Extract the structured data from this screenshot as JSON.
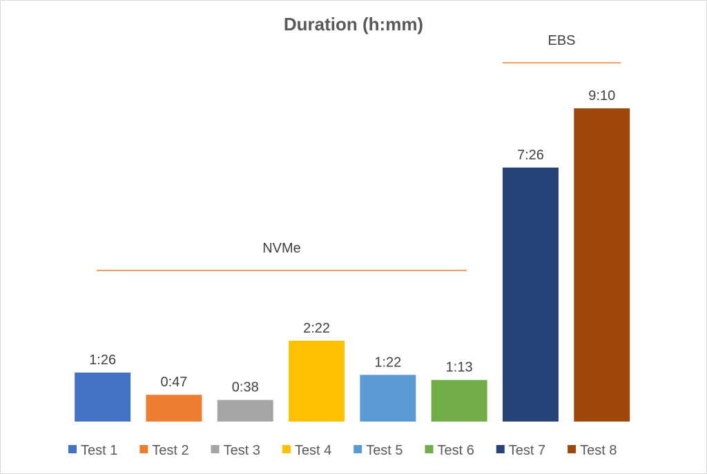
{
  "chart_data": {
    "type": "bar",
    "title": "Duration (h:mm)",
    "xlabel": "",
    "ylabel": "",
    "categories": [
      "Test 1",
      "Test 2",
      "Test 3",
      "Test 4",
      "Test 5",
      "Test 6",
      "Test 7",
      "Test 8"
    ],
    "values_minutes": [
      86,
      47,
      38,
      142,
      82,
      73,
      446,
      550
    ],
    "data_labels": [
      "1:26",
      "0:47",
      "0:38",
      "2:22",
      "1:22",
      "1:13",
      "7:26",
      "9:10"
    ],
    "colors": [
      "#4472C4",
      "#ED7D31",
      "#A5A5A5",
      "#FFC000",
      "#5B9BD5",
      "#70AD47",
      "#264478",
      "#9E480E"
    ],
    "ylim": [
      0,
      550
    ],
    "grid": false,
    "legend": [
      "Test 1",
      "Test 2",
      "Test 3",
      "Test 4",
      "Test 5",
      "Test 6",
      "Test 7",
      "Test 8"
    ],
    "legend_position": "bottom",
    "annotations": [
      {
        "text": "NVMe",
        "spans": [
          "Test 1",
          "Test 6"
        ],
        "line_color": "#ED7D31"
      },
      {
        "text": "EBS",
        "spans": [
          "Test 7",
          "Test 8"
        ],
        "line_color": "#ED7D31"
      }
    ]
  }
}
